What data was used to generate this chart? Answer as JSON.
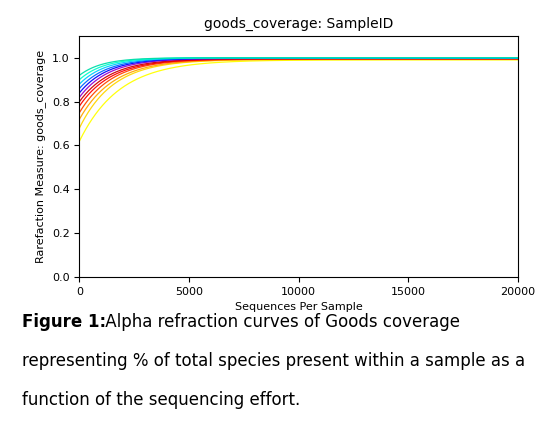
{
  "title": "goods_coverage: SampleID",
  "xlabel": "Sequences Per Sample",
  "ylabel": "Rarefaction Measure: goods_coverage",
  "xlim": [
    0,
    20000
  ],
  "ylim": [
    0.0,
    1.1
  ],
  "yticks": [
    0.0,
    0.2,
    0.4,
    0.6,
    0.8,
    1.0
  ],
  "xticks": [
    0,
    5000,
    10000,
    15000,
    20000
  ],
  "num_curves": 12,
  "asymptotes": [
    0.99,
    0.992,
    0.993,
    0.994,
    0.995,
    0.996,
    0.997,
    0.998,
    0.999,
    0.9995,
    0.9999,
    1.0
  ],
  "start_values": [
    0.62,
    0.68,
    0.72,
    0.75,
    0.78,
    0.8,
    0.82,
    0.84,
    0.86,
    0.88,
    0.9,
    0.92
  ],
  "growth_rates": [
    0.00055,
    0.00065,
    0.00065,
    0.00068,
    0.00068,
    0.0007,
    0.00075,
    0.00078,
    0.0008,
    0.00085,
    0.0009,
    0.00095
  ],
  "colors": [
    "#FFFF00",
    "#FFD700",
    "#FFA500",
    "#FF4500",
    "#FF0000",
    "#CC0000",
    "#9900CC",
    "#0000FF",
    "#0066FF",
    "#00CCFF",
    "#00FFCC",
    "#00DDAA"
  ],
  "background_color": "#ffffff",
  "border_color": "#7DC242",
  "title_fontsize": 10,
  "label_fontsize": 8,
  "tick_fontsize": 8,
  "caption_bold": "Figure 1:",
  "caption_normal": " Alpha refraction curves of Goods coverage\nrepresenting % of total species present within a sample as a\nfunction of the sequencing effort."
}
